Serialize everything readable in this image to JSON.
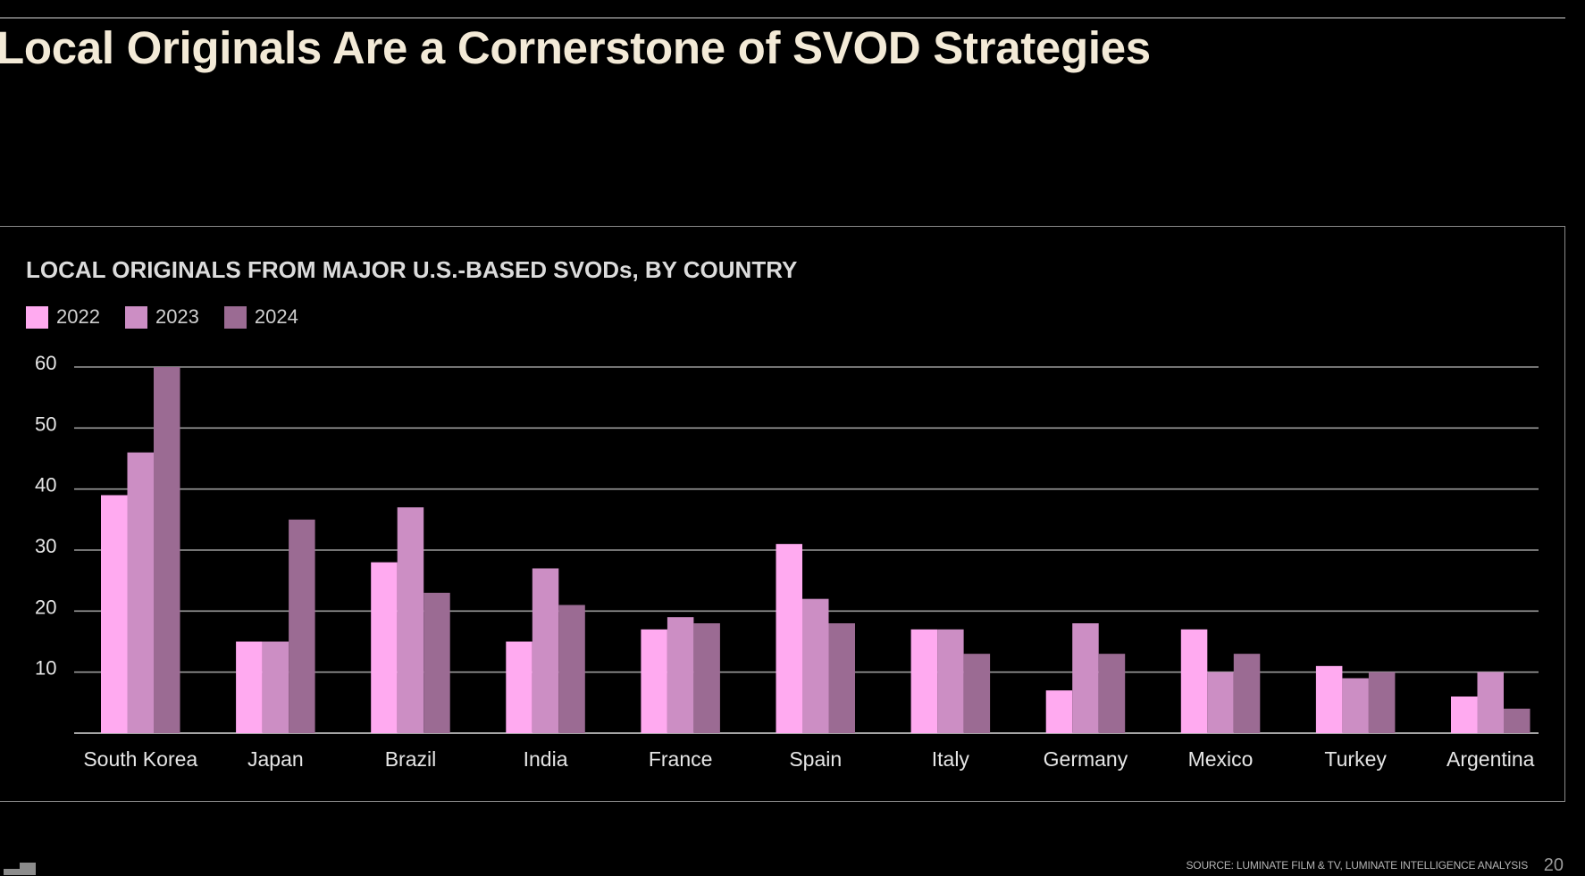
{
  "page": {
    "title": "Local Originals Are a Cornerstone of SVOD Strategies",
    "source": "SOURCE: LUMINATE FILM & TV, LUMINATE INTELLIGENCE ANALYSIS",
    "page_number": "20"
  },
  "chart_data": {
    "type": "bar",
    "title": "LOCAL ORIGINALS FROM MAJOR U.S.-BASED SVODs, BY COUNTRY",
    "categories": [
      "South Korea",
      "Japan",
      "Brazil",
      "India",
      "France",
      "Spain",
      "Italy",
      "Germany",
      "Mexico",
      "Turkey",
      "Argentina"
    ],
    "series": [
      {
        "name": "2022",
        "color": "#ffaaf0",
        "values": [
          39,
          15,
          28,
          15,
          17,
          31,
          17,
          7,
          17,
          11,
          6
        ]
      },
      {
        "name": "2023",
        "color": "#cc8ec4",
        "values": [
          46,
          15,
          37,
          27,
          19,
          22,
          17,
          18,
          10,
          9,
          10
        ]
      },
      {
        "name": "2024",
        "color": "#9b6b93",
        "values": [
          60,
          35,
          23,
          21,
          18,
          18,
          13,
          13,
          13,
          10,
          4
        ]
      }
    ],
    "yticks": [
      10,
      20,
      30,
      40,
      50,
      60
    ],
    "ylim": [
      0,
      60
    ],
    "xlabel": "",
    "ylabel": "",
    "grid": true,
    "legend": "top-left"
  }
}
